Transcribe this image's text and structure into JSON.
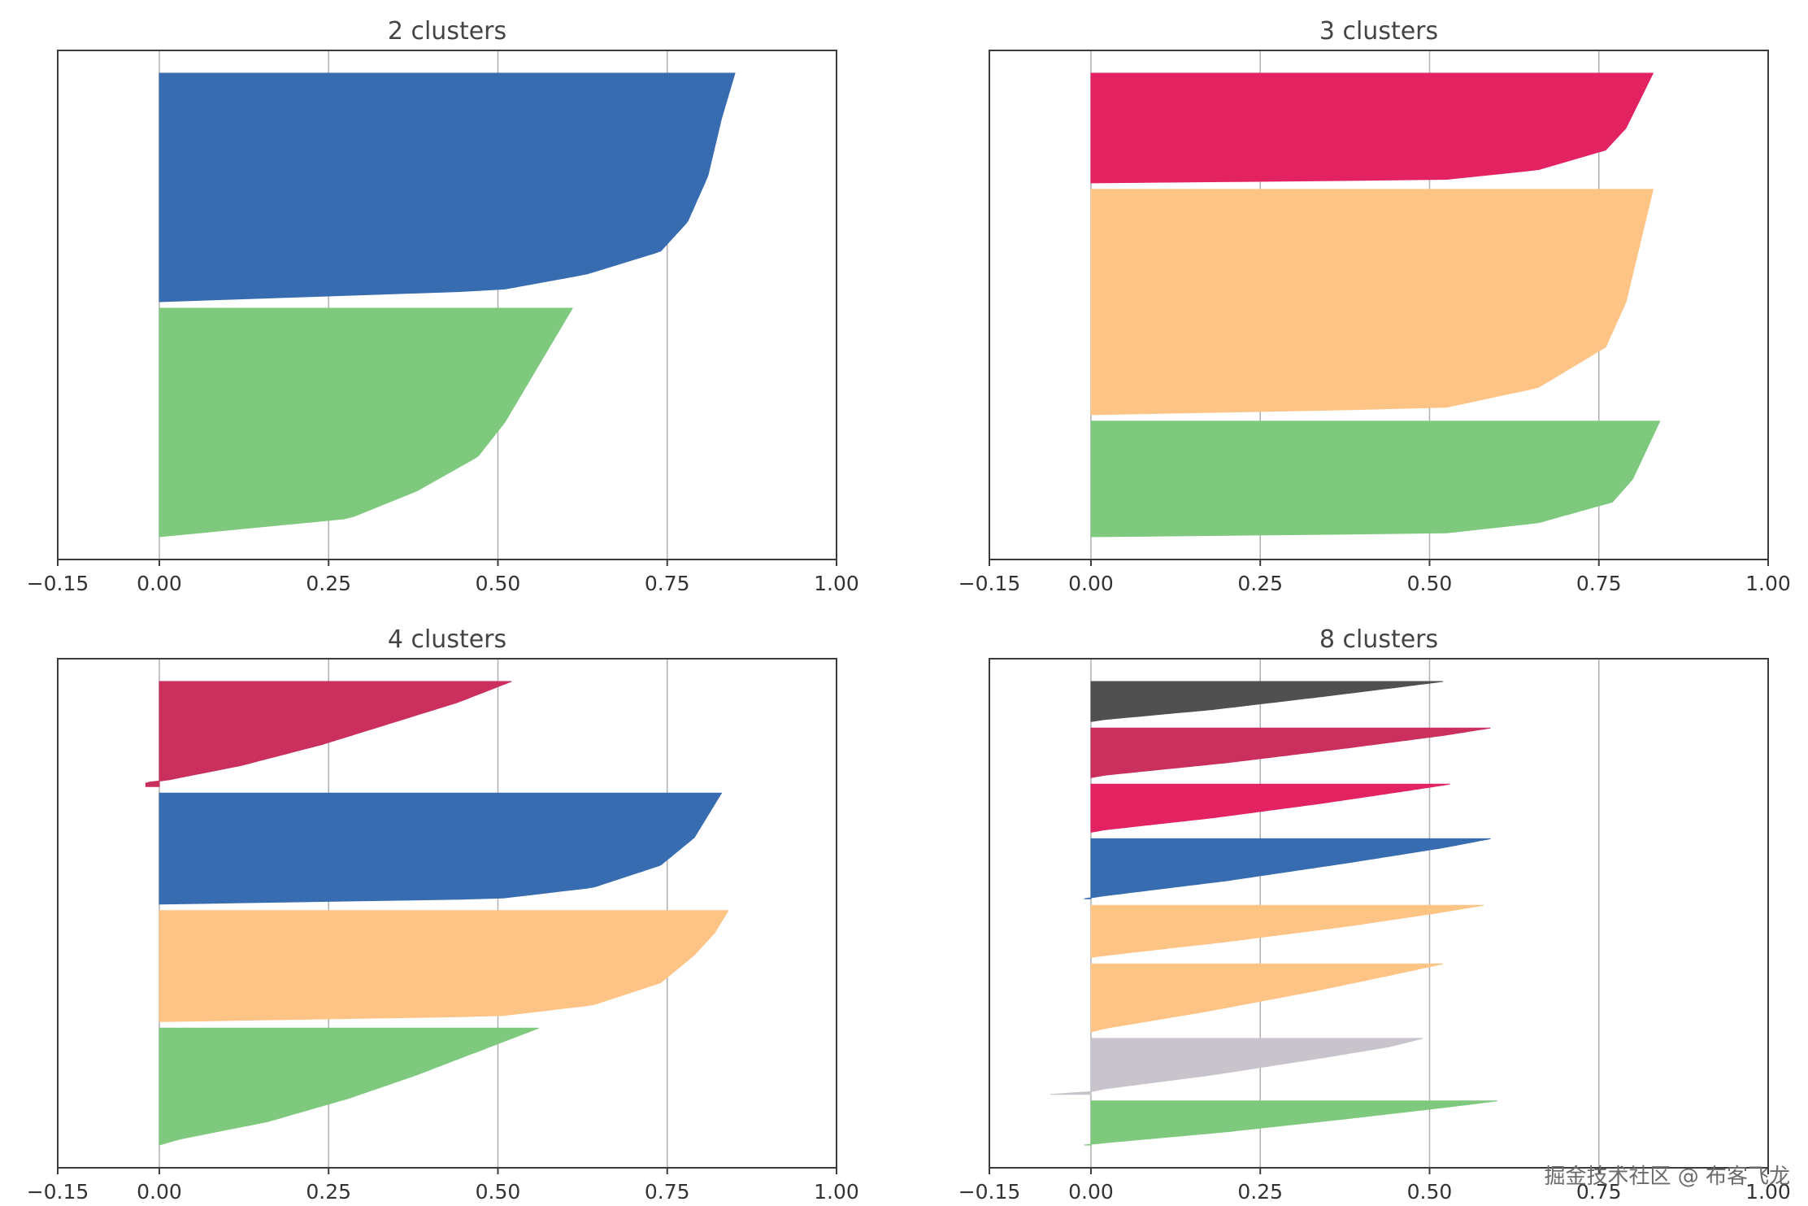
{
  "colors": {
    "grid": "#b0b0b0",
    "spine": "#3c3c3c",
    "text": "#333333",
    "title": "#444444"
  },
  "watermark": "掘金技术社区 @ 布客飞龙",
  "chart_data": [
    {
      "type": "bar",
      "subtype": "silhouette",
      "title": "2 clusters",
      "xlabel": "",
      "ylabel": "",
      "xlim": [
        -0.15,
        1.0
      ],
      "xticks": [
        "−0.15",
        "0.00",
        "0.25",
        "0.50",
        "0.75",
        "1.00"
      ],
      "xtick_values": [
        -0.15,
        0.0,
        0.25,
        0.5,
        0.75,
        1.0
      ],
      "grid": "x",
      "clusters": [
        {
          "color": "#7fc97f",
          "min": 0.0,
          "max": 0.61,
          "size": 1.0,
          "profile": [
            [
              0.0,
              0.0
            ],
            [
              0.08,
              0.28
            ],
            [
              0.2,
              0.38
            ],
            [
              0.35,
              0.47
            ],
            [
              0.5,
              0.51
            ],
            [
              0.65,
              0.54
            ],
            [
              0.8,
              0.57
            ],
            [
              1.0,
              0.61
            ]
          ]
        },
        {
          "color": "#386cb0",
          "min": 0.0,
          "max": 0.85,
          "size": 1.0,
          "profile": [
            [
              0.0,
              0.0
            ],
            [
              0.05,
              0.5
            ],
            [
              0.12,
              0.63
            ],
            [
              0.22,
              0.74
            ],
            [
              0.35,
              0.78
            ],
            [
              0.55,
              0.81
            ],
            [
              0.8,
              0.83
            ],
            [
              1.0,
              0.85
            ]
          ]
        }
      ]
    },
    {
      "type": "bar",
      "subtype": "silhouette",
      "title": "3 clusters",
      "xlabel": "",
      "ylabel": "",
      "xlim": [
        -0.15,
        1.0
      ],
      "xticks": [
        "−0.15",
        "0.00",
        "0.25",
        "0.50",
        "0.75",
        "1.00"
      ],
      "xtick_values": [
        -0.15,
        0.0,
        0.25,
        0.5,
        0.75,
        1.0
      ],
      "grid": "x",
      "clusters": [
        {
          "color": "#7fc97f",
          "min": 0.0,
          "max": 0.84,
          "size": 1.0,
          "profile": [
            [
              0.0,
              0.0
            ],
            [
              0.03,
              0.52
            ],
            [
              0.12,
              0.66
            ],
            [
              0.3,
              0.77
            ],
            [
              0.5,
              0.8
            ],
            [
              0.75,
              0.82
            ],
            [
              1.0,
              0.84
            ]
          ]
        },
        {
          "color": "#fdc486",
          "min": 0.0,
          "max": 0.83,
          "size": 1.95,
          "profile": [
            [
              0.0,
              0.0
            ],
            [
              0.03,
              0.52
            ],
            [
              0.12,
              0.66
            ],
            [
              0.3,
              0.76
            ],
            [
              0.5,
              0.79
            ],
            [
              0.75,
              0.81
            ],
            [
              1.0,
              0.83
            ]
          ]
        },
        {
          "color": "#e32361",
          "min": 0.0,
          "max": 0.83,
          "size": 0.95,
          "profile": [
            [
              0.0,
              0.0
            ],
            [
              0.03,
              0.52
            ],
            [
              0.12,
              0.66
            ],
            [
              0.3,
              0.76
            ],
            [
              0.5,
              0.79
            ],
            [
              0.75,
              0.81
            ],
            [
              1.0,
              0.83
            ]
          ]
        }
      ]
    },
    {
      "type": "bar",
      "subtype": "silhouette",
      "title": "4 clusters",
      "xlabel": "",
      "ylabel": "",
      "xlim": [
        -0.15,
        1.0
      ],
      "xticks": [
        "−0.15",
        "0.00",
        "0.25",
        "0.50",
        "0.75",
        "1.00"
      ],
      "xtick_values": [
        -0.15,
        0.0,
        0.25,
        0.5,
        0.75,
        1.0
      ],
      "grid": "x",
      "clusters": [
        {
          "color": "#7fc97f",
          "min": 0.0,
          "max": 0.56,
          "size": 1.0,
          "profile": [
            [
              0.0,
              0.0
            ],
            [
              0.05,
              0.03
            ],
            [
              0.2,
              0.16
            ],
            [
              0.4,
              0.28
            ],
            [
              0.6,
              0.38
            ],
            [
              0.8,
              0.47
            ],
            [
              1.0,
              0.56
            ]
          ]
        },
        {
          "color": "#fdc486",
          "min": 0.0,
          "max": 0.84,
          "size": 0.95,
          "profile": [
            [
              0.0,
              0.0
            ],
            [
              0.05,
              0.5
            ],
            [
              0.15,
              0.64
            ],
            [
              0.35,
              0.74
            ],
            [
              0.6,
              0.79
            ],
            [
              0.8,
              0.82
            ],
            [
              1.0,
              0.84
            ]
          ]
        },
        {
          "color": "#386cb0",
          "min": 0.0,
          "max": 0.83,
          "size": 0.95,
          "profile": [
            [
              0.0,
              0.0
            ],
            [
              0.05,
              0.5
            ],
            [
              0.15,
              0.64
            ],
            [
              0.35,
              0.74
            ],
            [
              0.6,
              0.79
            ],
            [
              0.8,
              0.81
            ],
            [
              1.0,
              0.83
            ]
          ]
        },
        {
          "color": "#ca2f5d",
          "min": -0.02,
          "max": 0.52,
          "size": 0.9,
          "profile": [
            [
              0.0,
              -0.02
            ],
            [
              0.04,
              -0.02
            ],
            [
              0.06,
              0.01
            ],
            [
              0.2,
              0.12
            ],
            [
              0.4,
              0.24
            ],
            [
              0.6,
              0.34
            ],
            [
              0.8,
              0.44
            ],
            [
              1.0,
              0.52
            ]
          ]
        }
      ]
    },
    {
      "type": "bar",
      "subtype": "silhouette",
      "title": "8 clusters",
      "xlabel": "",
      "ylabel": "",
      "xlim": [
        -0.15,
        1.0
      ],
      "xticks": [
        "−0.15",
        "0.00",
        "0.25",
        "0.50",
        "0.75",
        "1.00"
      ],
      "xtick_values": [
        -0.15,
        0.0,
        0.25,
        0.5,
        0.75,
        1.0
      ],
      "grid": "x",
      "clusters": [
        {
          "color": "#7fc97f",
          "min": -0.01,
          "max": 0.6,
          "size": 0.55,
          "profile": [
            [
              0.0,
              -0.01
            ],
            [
              0.05,
              0.02
            ],
            [
              0.3,
              0.2
            ],
            [
              0.6,
              0.38
            ],
            [
              0.85,
              0.52
            ],
            [
              1.0,
              0.6
            ]
          ]
        },
        {
          "color": "#c9c4cc",
          "min": -0.06,
          "max": 0.49,
          "size": 0.7,
          "profile": [
            [
              0.0,
              -0.06
            ],
            [
              0.05,
              0.0
            ],
            [
              0.1,
              0.02
            ],
            [
              0.35,
              0.18
            ],
            [
              0.65,
              0.34
            ],
            [
              0.85,
              0.44
            ],
            [
              1.0,
              0.49
            ]
          ]
        },
        {
          "color": "#fdc486",
          "min": 0.0,
          "max": 0.52,
          "size": 0.85,
          "profile": [
            [
              0.0,
              0.0
            ],
            [
              0.05,
              0.02
            ],
            [
              0.3,
              0.17
            ],
            [
              0.6,
              0.33
            ],
            [
              0.85,
              0.45
            ],
            [
              1.0,
              0.52
            ]
          ]
        },
        {
          "color": "#fdc486",
          "min": 0.0,
          "max": 0.58,
          "size": 0.65,
          "profile": [
            [
              0.0,
              0.0
            ],
            [
              0.05,
              0.03
            ],
            [
              0.3,
              0.2
            ],
            [
              0.6,
              0.38
            ],
            [
              0.85,
              0.51
            ],
            [
              1.0,
              0.58
            ]
          ]
        },
        {
          "color": "#386cb0",
          "min": -0.01,
          "max": 0.59,
          "size": 0.75,
          "profile": [
            [
              0.0,
              -0.01
            ],
            [
              0.05,
              0.02
            ],
            [
              0.3,
              0.2
            ],
            [
              0.6,
              0.38
            ],
            [
              0.85,
              0.52
            ],
            [
              1.0,
              0.59
            ]
          ]
        },
        {
          "color": "#e32361",
          "min": 0.0,
          "max": 0.53,
          "size": 0.6,
          "profile": [
            [
              0.0,
              0.0
            ],
            [
              0.05,
              0.02
            ],
            [
              0.3,
              0.18
            ],
            [
              0.6,
              0.34
            ],
            [
              0.85,
              0.46
            ],
            [
              1.0,
              0.53
            ]
          ]
        },
        {
          "color": "#ca2f5d",
          "min": 0.0,
          "max": 0.59,
          "size": 0.62,
          "profile": [
            [
              0.0,
              0.0
            ],
            [
              0.05,
              0.02
            ],
            [
              0.3,
              0.2
            ],
            [
              0.6,
              0.38
            ],
            [
              0.85,
              0.52
            ],
            [
              1.0,
              0.59
            ]
          ]
        },
        {
          "color": "#505050",
          "min": 0.0,
          "max": 0.52,
          "size": 0.5,
          "profile": [
            [
              0.0,
              0.0
            ],
            [
              0.05,
              0.02
            ],
            [
              0.3,
              0.18
            ],
            [
              0.6,
              0.33
            ],
            [
              0.85,
              0.45
            ],
            [
              1.0,
              0.52
            ]
          ]
        }
      ]
    }
  ]
}
